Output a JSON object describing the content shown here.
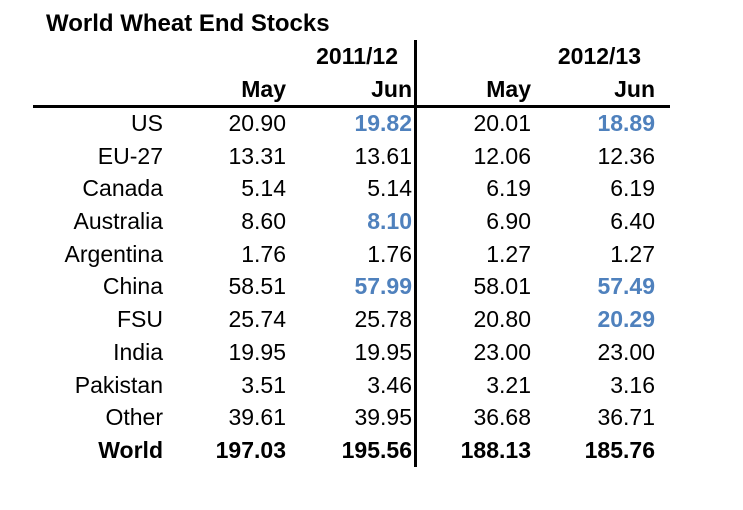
{
  "chart_data": {
    "type": "table",
    "title": "World Wheat End Stocks",
    "column_groups": [
      "2011/12",
      "2012/13"
    ],
    "month_headers": [
      "May",
      "Jun",
      "May",
      "Jun"
    ],
    "highlight_color": "#4f81bd",
    "text_color": "#000000",
    "rows": [
      {
        "label": "US",
        "values": [
          20.9,
          19.82,
          20.01,
          18.89
        ],
        "highlight": [
          false,
          true,
          false,
          true
        ],
        "bold": false
      },
      {
        "label": "EU-27",
        "values": [
          13.31,
          13.61,
          12.06,
          12.36
        ],
        "highlight": [
          false,
          false,
          false,
          false
        ],
        "bold": false
      },
      {
        "label": "Canada",
        "values": [
          5.14,
          5.14,
          6.19,
          6.19
        ],
        "highlight": [
          false,
          false,
          false,
          false
        ],
        "bold": false
      },
      {
        "label": "Australia",
        "values": [
          8.6,
          8.1,
          6.9,
          6.4
        ],
        "highlight": [
          false,
          true,
          false,
          false
        ],
        "bold": false
      },
      {
        "label": "Argentina",
        "values": [
          1.76,
          1.76,
          1.27,
          1.27
        ],
        "highlight": [
          false,
          false,
          false,
          false
        ],
        "bold": false
      },
      {
        "label": "China",
        "values": [
          58.51,
          57.99,
          58.01,
          57.49
        ],
        "highlight": [
          false,
          true,
          false,
          true
        ],
        "bold": false
      },
      {
        "label": "FSU",
        "values": [
          25.74,
          25.78,
          20.8,
          20.29
        ],
        "highlight": [
          false,
          false,
          false,
          true
        ],
        "bold": false
      },
      {
        "label": "India",
        "values": [
          19.95,
          19.95,
          23.0,
          23.0
        ],
        "highlight": [
          false,
          false,
          false,
          false
        ],
        "bold": false
      },
      {
        "label": "Pakistan",
        "values": [
          3.51,
          3.46,
          3.21,
          3.16
        ],
        "highlight": [
          false,
          false,
          false,
          false
        ],
        "bold": false
      },
      {
        "label": "Other",
        "values": [
          39.61,
          39.95,
          36.68,
          36.71
        ],
        "highlight": [
          false,
          false,
          false,
          false
        ],
        "bold": false
      },
      {
        "label": "World",
        "values": [
          197.03,
          195.56,
          188.13,
          185.76
        ],
        "highlight": [
          false,
          false,
          false,
          false
        ],
        "bold": true
      }
    ]
  }
}
